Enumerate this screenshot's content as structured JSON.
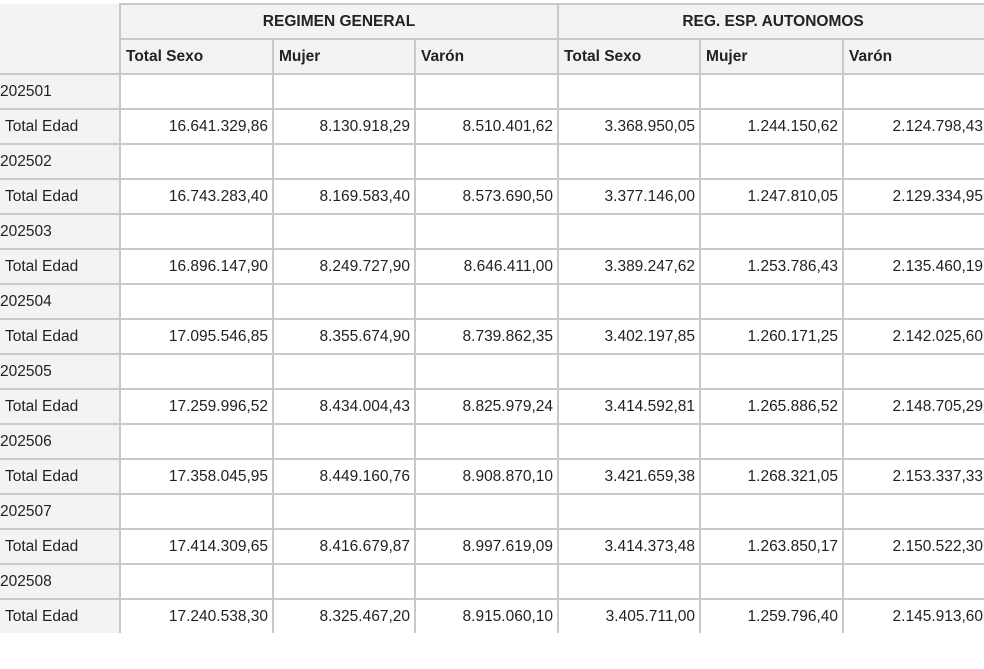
{
  "table": {
    "groups": [
      "REGIMEN GENERAL",
      "REG. ESP. AUTONOMOS"
    ],
    "subheaders": [
      "Total Sexo",
      "Mujer",
      "Varón",
      "Total Sexo",
      "Mujer",
      "Varón"
    ],
    "rows": [
      {
        "period": "202501",
        "label": "Total Edad",
        "values": [
          "16.641.329,86",
          "8.130.918,29",
          "8.510.401,62",
          "3.368.950,05",
          "1.244.150,62",
          "2.124.798,43"
        ]
      },
      {
        "period": "202502",
        "label": "Total Edad",
        "values": [
          "16.743.283,40",
          "8.169.583,40",
          "8.573.690,50",
          "3.377.146,00",
          "1.247.810,05",
          "2.129.334,95"
        ]
      },
      {
        "period": "202503",
        "label": "Total Edad",
        "values": [
          "16.896.147,90",
          "8.249.727,90",
          "8.646.411,00",
          "3.389.247,62",
          "1.253.786,43",
          "2.135.460,19"
        ]
      },
      {
        "period": "202504",
        "label": "Total Edad",
        "values": [
          "17.095.546,85",
          "8.355.674,90",
          "8.739.862,35",
          "3.402.197,85",
          "1.260.171,25",
          "2.142.025,60"
        ]
      },
      {
        "period": "202505",
        "label": "Total Edad",
        "values": [
          "17.259.996,52",
          "8.434.004,43",
          "8.825.979,24",
          "3.414.592,81",
          "1.265.886,52",
          "2.148.705,29"
        ]
      },
      {
        "period": "202506",
        "label": "Total Edad",
        "values": [
          "17.358.045,95",
          "8.449.160,76",
          "8.908.870,10",
          "3.421.659,38",
          "1.268.321,05",
          "2.153.337,33"
        ]
      },
      {
        "period": "202507",
        "label": "Total Edad",
        "values": [
          "17.414.309,65",
          "8.416.679,87",
          "8.997.619,09",
          "3.414.373,48",
          "1.263.850,17",
          "2.150.522,30"
        ]
      },
      {
        "period": "202508",
        "label": "Total Edad",
        "values": [
          "17.240.538,30",
          "8.325.467,20",
          "8.915.060,10",
          "3.405.711,00",
          "1.259.796,40",
          "2.145.913,60"
        ]
      }
    ]
  }
}
